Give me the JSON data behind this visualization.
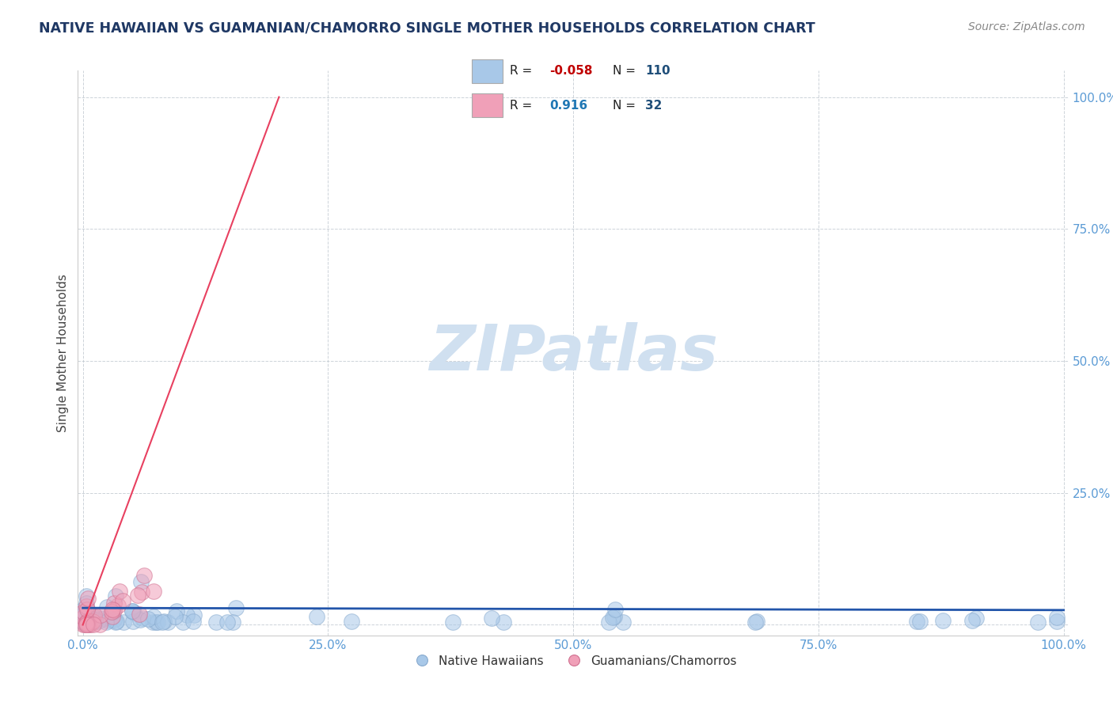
{
  "title": "NATIVE HAWAIIAN VS GUAMANIAN/CHAMORRO SINGLE MOTHER HOUSEHOLDS CORRELATION CHART",
  "source": "Source: ZipAtlas.com",
  "ylabel": "Single Mother Households",
  "watermark": "ZIPatlas",
  "color_blue": "#A8C8E8",
  "color_pink": "#F0A0B8",
  "color_line_blue": "#2255AA",
  "color_line_pink": "#E84060",
  "color_r_neg": "#C00000",
  "color_r_pos": "#1F77B4",
  "color_n": "#1F4E79",
  "color_title": "#1F3864",
  "color_source": "#888888",
  "color_watermark": "#D0E0F0",
  "color_gridline": "#C0C8D0",
  "color_ytick": "#5B9BD5",
  "color_xtick": "#5B9BD5",
  "background_color": "#FFFFFF",
  "r1": "-0.058",
  "n1": "110",
  "r2": "0.916",
  "n2": "32"
}
